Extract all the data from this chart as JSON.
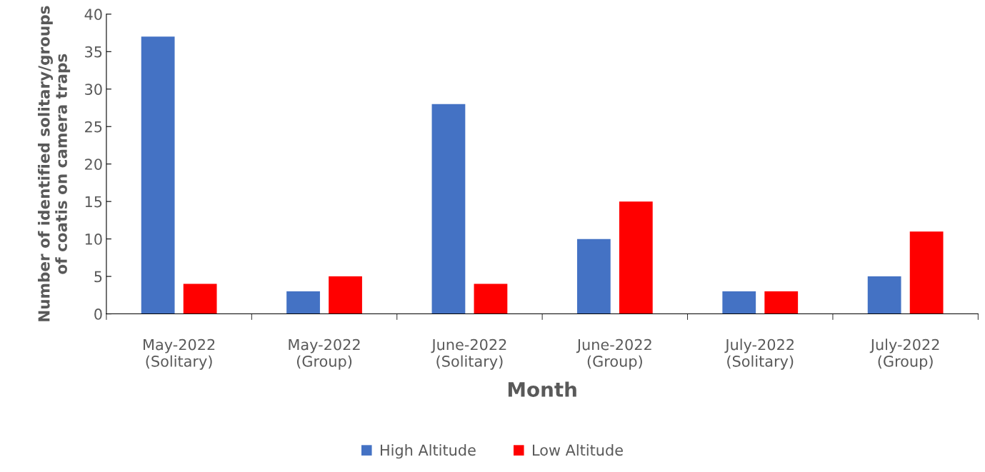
{
  "chart_data": {
    "type": "bar",
    "xlabel": "Month",
    "ylabel": "Number of identified solitary/groups\nof coatis on camera traps",
    "categories": [
      "May-2022\n(Solitary)",
      "May-2022\n(Group)",
      "June-2022\n(Solitary)",
      "June-2022\n(Group)",
      "July-2022\n(Solitary)",
      "July-2022\n(Group)"
    ],
    "series": [
      {
        "name": "High Altitude",
        "color": "#4472c4",
        "values": [
          37,
          3,
          28,
          10,
          3,
          5
        ]
      },
      {
        "name": "Low Altitude",
        "color": "#ff0000",
        "values": [
          4,
          5,
          4,
          15,
          3,
          11
        ]
      }
    ],
    "ylim": [
      0,
      40
    ],
    "yticks": [
      0,
      5,
      10,
      15,
      20,
      25,
      30,
      35,
      40
    ],
    "grid": false,
    "legend": "bottom"
  }
}
